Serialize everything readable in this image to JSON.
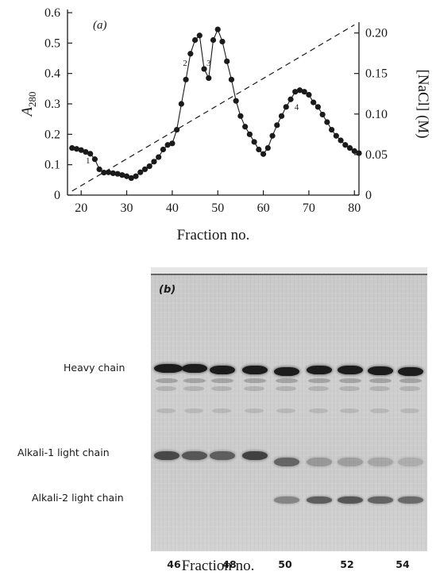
{
  "panel_a": {
    "label": "(a)",
    "xlabel": "Fraction no.",
    "ylabel_left": "A",
    "ylabel_left_sub": "280",
    "ylabel_right": "[NaCl] (M)",
    "left_ticks": [
      "0",
      "0.1",
      "0.2",
      "0.3",
      "0.4",
      "0.5",
      "0.6"
    ],
    "right_ticks": [
      "0",
      "0.05",
      "0.10",
      "0.15",
      "0.20"
    ],
    "x_ticks": [
      "20",
      "30",
      "40",
      "50",
      "60",
      "70",
      "80"
    ],
    "peak_labels": [
      {
        "text": "1",
        "x": 21.5,
        "y": 0.105
      },
      {
        "text": "2",
        "x": 42.8,
        "y": 0.425
      },
      {
        "text": "3",
        "x": 48.0,
        "y": 0.425
      },
      {
        "text": "4",
        "x": 67.3,
        "y": 0.28
      }
    ]
  },
  "chart_data": {
    "type": "line",
    "title": "",
    "xlabel": "Fraction no.",
    "ylabel": "A280",
    "y2label": "[NaCl] (M)",
    "xlim": [
      17,
      81
    ],
    "ylim": [
      0,
      0.6
    ],
    "y2lim": [
      0,
      0.225
    ],
    "series": [
      {
        "x": [
          18,
          19,
          20,
          21,
          22,
          23,
          24,
          25,
          26,
          27,
          28,
          29,
          30,
          31,
          32,
          33,
          34,
          35,
          36,
          37,
          38,
          39,
          40,
          41,
          42,
          43,
          44,
          45,
          46,
          47,
          48,
          49,
          50,
          51,
          52,
          53,
          54,
          55,
          56,
          57,
          58,
          59,
          60,
          61,
          62,
          63,
          64,
          65,
          66,
          67,
          68,
          69,
          70,
          71,
          72,
          73,
          74,
          75,
          76,
          77,
          78,
          79,
          80,
          81
        ],
        "y": [
          0.155,
          0.152,
          0.148,
          0.142,
          0.136,
          0.118,
          0.085,
          0.074,
          0.075,
          0.072,
          0.07,
          0.066,
          0.062,
          0.056,
          0.062,
          0.075,
          0.085,
          0.095,
          0.11,
          0.125,
          0.15,
          0.165,
          0.17,
          0.215,
          0.3,
          0.38,
          0.465,
          0.51,
          0.525,
          0.415,
          0.385,
          0.51,
          0.545,
          0.505,
          0.44,
          0.38,
          0.31,
          0.26,
          0.225,
          0.2,
          0.175,
          0.15,
          0.135,
          0.155,
          0.195,
          0.23,
          0.26,
          0.29,
          0.315,
          0.34,
          0.345,
          0.34,
          0.33,
          0.305,
          0.29,
          0.265,
          0.24,
          0.215,
          0.195,
          0.18,
          0.165,
          0.155,
          0.145,
          0.138
        ]
      }
    ],
    "gradient_line": {
      "x": [
        18,
        80
      ],
      "y2": [
        0.005,
        0.21
      ],
      "style": "dashed"
    }
  },
  "panel_b": {
    "label": "(b)",
    "band_labels": {
      "heavy": "Heavy chain",
      "alkali1": "Alkali-1 light chain",
      "alkali2": "Alkali-2 light chain"
    },
    "lane_numbers": [
      "46",
      "48",
      "50",
      "52",
      "54"
    ],
    "xlabel": "Fraction no."
  }
}
